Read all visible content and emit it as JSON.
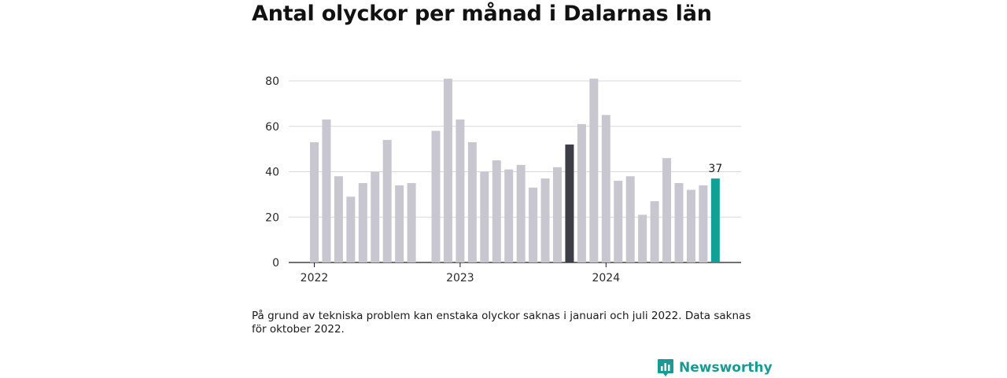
{
  "header": {
    "title": "Antal olyckor per månad i Dalarnas län"
  },
  "footer": {
    "note": "På grund av tekniska problem kan enstaka olyckor saknas i januari och juli 2022. Data saknas för oktober 2022.",
    "brand": "Newsworthy"
  },
  "colors": {
    "bar_default": "#c8c7cf",
    "bar_highlight_previous": "#3d3d47",
    "bar_latest": "#10a196",
    "brand": "#1a9a93",
    "grid": "#d9d9d9"
  },
  "icons": {
    "brand_logo": "bar-chart-speech-bubble-icon"
  },
  "chart_data": {
    "type": "bar",
    "title": "Antal olyckor per månad i Dalarnas län",
    "xlabel": "",
    "ylabel": "",
    "ylim": [
      0,
      80
    ],
    "yticks": [
      0,
      20,
      40,
      60,
      80
    ],
    "grid": true,
    "legend": "none",
    "x_tick_labels": [
      "2022",
      "2023",
      "2024"
    ],
    "categories": [
      "2022-01",
      "2022-02",
      "2022-03",
      "2022-04",
      "2022-05",
      "2022-06",
      "2022-07",
      "2022-08",
      "2022-09",
      "2022-10",
      "2022-11",
      "2022-12",
      "2023-01",
      "2023-02",
      "2023-03",
      "2023-04",
      "2023-05",
      "2023-06",
      "2023-07",
      "2023-08",
      "2023-09",
      "2023-10",
      "2023-11",
      "2023-12",
      "2024-01",
      "2024-02",
      "2024-03",
      "2024-04",
      "2024-05",
      "2024-06",
      "2024-07",
      "2024-08",
      "2024-09",
      "2024-10"
    ],
    "values": [
      53,
      63,
      38,
      29,
      35,
      40,
      54,
      34,
      35,
      null,
      58,
      81,
      63,
      53,
      40,
      45,
      41,
      43,
      33,
      37,
      42,
      52,
      61,
      81,
      65,
      36,
      38,
      21,
      27,
      46,
      35,
      32,
      34,
      37
    ],
    "highlight_previous_year_index": 21,
    "latest_index": 33,
    "data_labels": [
      {
        "index": 33,
        "text": "37"
      }
    ]
  }
}
